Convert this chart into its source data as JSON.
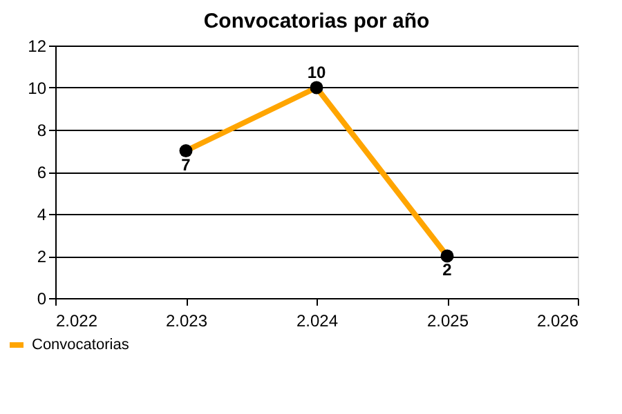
{
  "chart_data": {
    "type": "line",
    "title": "Convocatorias por año",
    "x": [
      2023,
      2024,
      2025
    ],
    "series": [
      {
        "name": "Convocatorias",
        "color": "#ffa500",
        "values": [
          7,
          10,
          2
        ]
      }
    ],
    "xlim": [
      2022,
      2026
    ],
    "xticks": [
      {
        "value": 2022,
        "label": "2.022"
      },
      {
        "value": 2023,
        "label": "2.023"
      },
      {
        "value": 2024,
        "label": "2.024"
      },
      {
        "value": 2025,
        "label": "2.025"
      },
      {
        "value": 2026,
        "label": "2.026"
      }
    ],
    "ylim": [
      0,
      12
    ],
    "yticks": [
      0,
      2,
      4,
      6,
      8,
      10,
      12
    ],
    "grid": "y",
    "legend": "bottom left",
    "marker": "circle",
    "line_style": "solid",
    "data_labels": true
  }
}
